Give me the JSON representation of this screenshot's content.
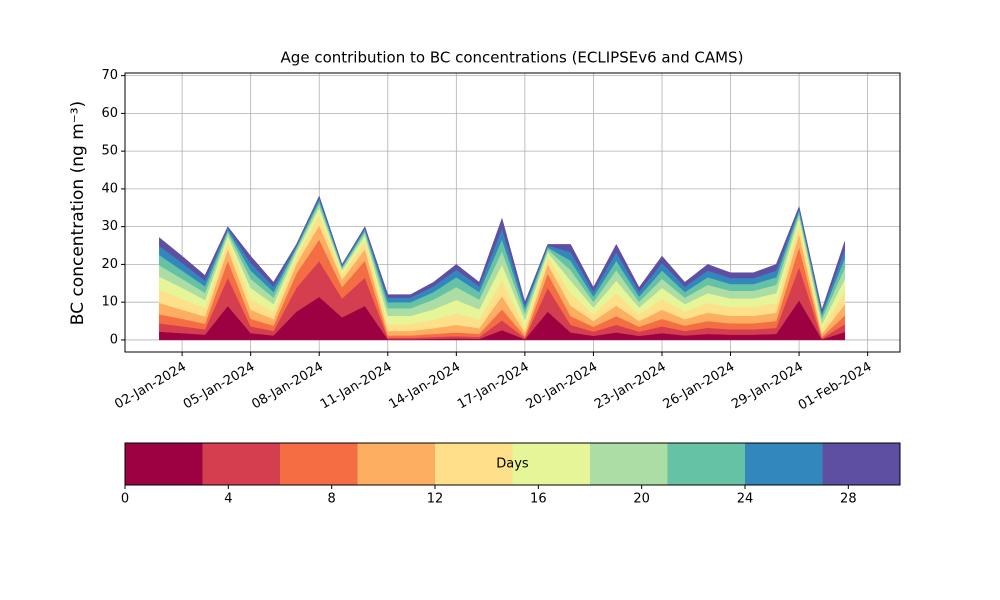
{
  "chart_data": {
    "type": "stacked_area",
    "title": "Age contribution to BC concentrations (ECLIPSEv6 and CAMS)",
    "y_label": "BC concentration (ng m⁻³)",
    "x": [
      "2024-01-01",
      "2024-01-02",
      "2024-01-03",
      "2024-01-04",
      "2024-01-05",
      "2024-01-06",
      "2024-01-07",
      "2024-01-08",
      "2024-01-09",
      "2024-01-10",
      "2024-01-11",
      "2024-01-12",
      "2024-01-13",
      "2024-01-14",
      "2024-01-15",
      "2024-01-16",
      "2024-01-17",
      "2024-01-18",
      "2024-01-19",
      "2024-01-20",
      "2024-01-21",
      "2024-01-22",
      "2024-01-23",
      "2024-01-24",
      "2024-01-25",
      "2024-01-26",
      "2024-01-27",
      "2024-01-28",
      "2024-01-29",
      "2024-01-30",
      "2024-01-31"
    ],
    "series": [
      {
        "color": "#9e0142",
        "values": [
          2.2,
          1.8,
          1.4,
          9.0,
          1.8,
          1.2,
          7.5,
          11.4,
          6.0,
          9.0,
          0.2,
          0.2,
          0.3,
          0.4,
          0.3,
          2.6,
          0.2,
          7.5,
          2.0,
          1.1,
          2.0,
          1.1,
          1.8,
          1.2,
          1.6,
          1.4,
          1.4,
          1.6,
          10.5,
          0.2,
          2.1
        ]
      },
      {
        "color": "#d53e4f",
        "values": [
          2.2,
          1.8,
          1.4,
          7.5,
          1.8,
          1.2,
          6.3,
          9.5,
          5.0,
          7.5,
          0.4,
          0.4,
          0.5,
          0.6,
          0.5,
          2.6,
          0.3,
          6.3,
          2.0,
          1.1,
          2.0,
          1.1,
          1.8,
          1.2,
          1.6,
          1.4,
          1.4,
          1.6,
          8.8,
          0.2,
          2.1
        ]
      },
      {
        "color": "#f46d43",
        "values": [
          2.4,
          2.0,
          1.5,
          4.5,
          2.0,
          1.4,
          3.8,
          5.7,
          3.0,
          4.5,
          0.6,
          0.6,
          0.8,
          1.0,
          0.8,
          2.9,
          0.5,
          3.8,
          2.3,
          1.3,
          2.3,
          1.3,
          2.0,
          1.4,
          1.8,
          1.6,
          1.6,
          1.8,
          5.3,
          0.4,
          2.3
        ]
      },
      {
        "color": "#fdae61",
        "values": [
          3.0,
          2.4,
          1.9,
          3.0,
          2.4,
          1.7,
          2.5,
          3.8,
          2.0,
          3.0,
          1.2,
          1.2,
          1.5,
          2.0,
          1.5,
          3.5,
          1.0,
          2.5,
          2.8,
          1.5,
          2.8,
          1.5,
          2.4,
          1.7,
          2.2,
          2.0,
          2.0,
          2.2,
          3.5,
          0.8,
          2.9
        ]
      },
      {
        "color": "#fee08b",
        "values": [
          3.5,
          2.9,
          2.2,
          2.1,
          2.9,
          2.0,
          1.8,
          2.7,
          1.4,
          2.1,
          1.8,
          1.8,
          2.3,
          3.0,
          2.3,
          4.2,
          1.5,
          1.8,
          3.3,
          1.8,
          3.3,
          1.8,
          2.9,
          2.0,
          2.6,
          2.3,
          2.3,
          2.6,
          2.5,
          1.2,
          3.4
        ]
      },
      {
        "color": "#e6f598",
        "values": [
          3.5,
          2.9,
          2.2,
          1.5,
          2.9,
          2.0,
          1.3,
          1.9,
          1.0,
          1.5,
          2.2,
          2.2,
          2.7,
          3.6,
          2.7,
          4.2,
          1.8,
          1.3,
          3.3,
          1.8,
          3.3,
          1.8,
          2.9,
          2.0,
          2.6,
          2.3,
          2.3,
          2.6,
          1.8,
          1.4,
          3.4
        ]
      },
      {
        "color": "#abdda4",
        "values": [
          3.0,
          2.4,
          1.9,
          0.9,
          2.4,
          1.7,
          0.8,
          1.1,
          0.6,
          0.9,
          2.0,
          2.0,
          2.6,
          3.4,
          2.6,
          3.5,
          1.7,
          0.8,
          2.8,
          1.5,
          2.8,
          1.5,
          2.4,
          1.7,
          2.2,
          2.0,
          2.0,
          2.2,
          1.1,
          1.4,
          2.9
        ]
      },
      {
        "color": "#66c2a5",
        "values": [
          2.7,
          2.2,
          1.7,
          0.6,
          2.2,
          1.5,
          0.5,
          0.8,
          0.4,
          0.6,
          1.6,
          1.6,
          2.0,
          2.6,
          2.0,
          3.2,
          1.3,
          0.5,
          2.5,
          1.4,
          2.5,
          1.4,
          2.2,
          1.5,
          2.0,
          1.8,
          1.8,
          2.0,
          0.7,
          1.0,
          2.6
        ]
      },
      {
        "color": "#3288bd",
        "values": [
          2.4,
          2.0,
          1.5,
          0.6,
          2.0,
          1.4,
          0.5,
          0.8,
          0.4,
          0.6,
          1.2,
          1.2,
          1.5,
          2.0,
          1.5,
          2.9,
          1.0,
          0.5,
          2.3,
          1.3,
          2.3,
          1.3,
          2.0,
          1.4,
          1.8,
          1.6,
          1.6,
          1.8,
          0.7,
          0.8,
          2.3
        ]
      },
      {
        "color": "#5e4fa2",
        "values": [
          2.2,
          1.8,
          1.4,
          0.3,
          1.8,
          1.2,
          0.3,
          0.4,
          0.2,
          0.3,
          0.8,
          0.8,
          1.1,
          1.4,
          1.1,
          2.6,
          0.7,
          0.3,
          2.0,
          1.1,
          2.0,
          1.1,
          1.8,
          1.2,
          1.6,
          1.4,
          1.4,
          1.6,
          0.4,
          0.6,
          2.1
        ]
      }
    ],
    "xlim": [
      "2023-12-30T12:00",
      "2024-02-02T10:00"
    ],
    "xticks": [
      {
        "value": "2024-01-02",
        "label": "02-Jan-2024"
      },
      {
        "value": "2024-01-05",
        "label": "05-Jan-2024"
      },
      {
        "value": "2024-01-08",
        "label": "08-Jan-2024"
      },
      {
        "value": "2024-01-11",
        "label": "11-Jan-2024"
      },
      {
        "value": "2024-01-14",
        "label": "14-Jan-2024"
      },
      {
        "value": "2024-01-17",
        "label": "17-Jan-2024"
      },
      {
        "value": "2024-01-20",
        "label": "20-Jan-2024"
      },
      {
        "value": "2024-01-23",
        "label": "23-Jan-2024"
      },
      {
        "value": "2024-01-26",
        "label": "26-Jan-2024"
      },
      {
        "value": "2024-01-29",
        "label": "29-Jan-2024"
      },
      {
        "value": "2024-02-01",
        "label": "01-Feb-2024"
      }
    ],
    "ylim": [
      -3.2,
      70.7
    ],
    "yticks": [
      0,
      10,
      20,
      30,
      40,
      50,
      60,
      70
    ],
    "grid": true,
    "colorbar": {
      "label": "Days",
      "lim": [
        0,
        30
      ],
      "ticks": [
        0,
        4,
        8,
        12,
        16,
        20,
        24,
        28
      ]
    }
  }
}
